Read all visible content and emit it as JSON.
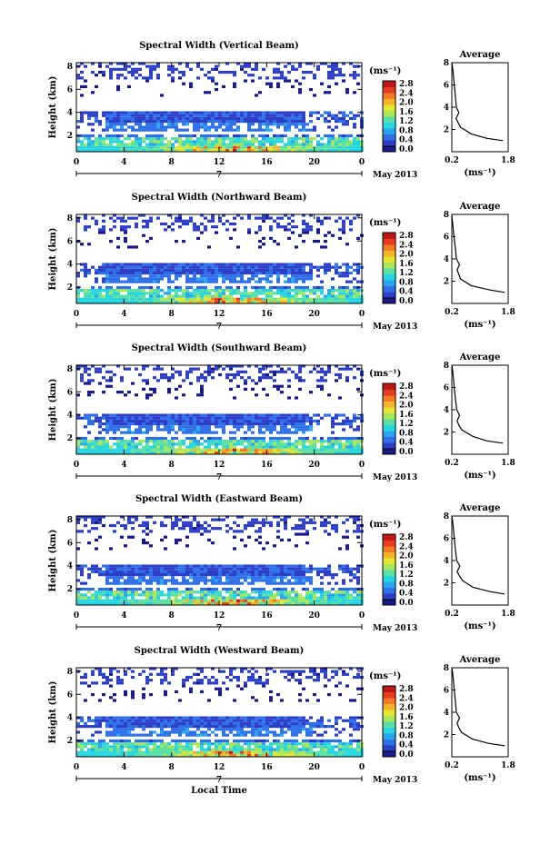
{
  "figure": {
    "xlabel": "Local Time",
    "date_label": "May 2013",
    "day_label": "7",
    "ylabel": "Height (km)",
    "colorbar_unit": "(ms⁻¹)",
    "avg_xlabel": "(ms⁻¹)",
    "colorscale": [
      "#1a1a8c",
      "#2d3fc9",
      "#2f6fe8",
      "#2aa6f0",
      "#25d6e0",
      "#5ae0a4",
      "#a8e65a",
      "#e6e632",
      "#f5b428",
      "#f57a23",
      "#e83c1e",
      "#c01818"
    ]
  },
  "chart_data": [
    {
      "type": "heatmap",
      "title": "Spectral Width (Vertical Beam)",
      "xlabel": "",
      "ylabel": "Height (km)",
      "xlim": [
        0,
        24
      ],
      "ylim": [
        0.6,
        8.3
      ],
      "xticks": [
        "0",
        "4",
        "8",
        "12",
        "16",
        "20",
        "0"
      ],
      "yticks": [
        "2",
        "4",
        "6",
        "8"
      ],
      "colorbar": {
        "label": "(ms⁻¹)",
        "range": [
          0,
          2.8
        ],
        "ticks": [
          "2.8",
          "2.4",
          "2.0",
          "1.6",
          "1.2",
          "0.8",
          "0.4",
          "0.0"
        ]
      },
      "average": {
        "title": "Average",
        "xlim": [
          0.2,
          1.8
        ],
        "xticks": [
          "0.2",
          "1.8"
        ],
        "ylim": [
          0,
          8
        ],
        "yticks": [
          "2",
          "4",
          "6",
          "8"
        ],
        "x": [
          1.65,
          1.2,
          0.75,
          0.45,
          0.38,
          0.32,
          0.4,
          0.33,
          0.3,
          0.27,
          0.24,
          0.22,
          0.2
        ],
        "y": [
          1.0,
          1.2,
          1.6,
          2.2,
          2.6,
          3.0,
          3.5,
          4.0,
          5.0,
          6.0,
          7.0,
          7.6,
          8.0
        ]
      }
    },
    {
      "type": "heatmap",
      "title": "Spectral Width (Northward Beam)",
      "xlabel": "",
      "ylabel": "Height (km)",
      "xlim": [
        0,
        24
      ],
      "ylim": [
        0.6,
        8.3
      ],
      "xticks": [
        "0",
        "4",
        "8",
        "12",
        "16",
        "20",
        "0"
      ],
      "yticks": [
        "2",
        "4",
        "6",
        "8"
      ],
      "colorbar": {
        "label": "(ms⁻¹)",
        "range": [
          0,
          2.8
        ],
        "ticks": [
          "2.8",
          "2.4",
          "2.0",
          "1.6",
          "1.2",
          "0.8",
          "0.4",
          "0.0"
        ]
      },
      "average": {
        "title": "Average",
        "xlim": [
          0.2,
          1.8
        ],
        "xticks": [
          "0.2",
          "1.8"
        ],
        "ylim": [
          0,
          8
        ],
        "yticks": [
          "2",
          "4",
          "6",
          "8"
        ],
        "x": [
          1.7,
          1.3,
          0.75,
          0.45,
          0.4,
          0.35,
          0.42,
          0.33,
          0.3,
          0.26,
          0.23,
          0.21,
          0.2
        ],
        "y": [
          1.0,
          1.2,
          1.6,
          2.2,
          2.6,
          3.0,
          3.5,
          4.0,
          5.0,
          6.0,
          7.0,
          7.6,
          8.0
        ]
      }
    },
    {
      "type": "heatmap",
      "title": "Spectral Width (Southward Beam)",
      "xlabel": "",
      "ylabel": "Height (km)",
      "xlim": [
        0,
        24
      ],
      "ylim": [
        0.6,
        8.3
      ],
      "xticks": [
        "0",
        "4",
        "8",
        "12",
        "16",
        "20",
        "0"
      ],
      "yticks": [
        "2",
        "4",
        "6",
        "8"
      ],
      "colorbar": {
        "label": "(ms⁻¹)",
        "range": [
          0,
          2.8
        ],
        "ticks": [
          "2.8",
          "2.4",
          "2.0",
          "1.6",
          "1.2",
          "0.8",
          "0.4",
          "0.0"
        ]
      },
      "average": {
        "title": "Average",
        "xlim": [
          0.2,
          1.8
        ],
        "xticks": [
          "0.2",
          "1.8"
        ],
        "ylim": [
          0,
          8
        ],
        "yticks": [
          "2",
          "4",
          "6",
          "8"
        ],
        "x": [
          1.65,
          1.2,
          0.8,
          0.48,
          0.4,
          0.35,
          0.42,
          0.34,
          0.3,
          0.27,
          0.24,
          0.22,
          0.2
        ],
        "y": [
          1.0,
          1.2,
          1.6,
          2.2,
          2.6,
          3.0,
          3.5,
          4.0,
          5.0,
          6.0,
          7.0,
          7.6,
          8.0
        ]
      }
    },
    {
      "type": "heatmap",
      "title": "Spectral Width (Eastward Beam)",
      "xlabel": "",
      "ylabel": "Height (km)",
      "xlim": [
        0,
        24
      ],
      "ylim": [
        0.6,
        8.3
      ],
      "xticks": [
        "0",
        "4",
        "8",
        "12",
        "16",
        "20",
        "0"
      ],
      "yticks": [
        "2",
        "4",
        "6",
        "8"
      ],
      "colorbar": {
        "label": "(ms⁻¹)",
        "range": [
          0,
          2.8
        ],
        "ticks": [
          "2.8",
          "2.4",
          "2.0",
          "1.6",
          "1.2",
          "0.8",
          "0.4",
          "0.0"
        ]
      },
      "average": {
        "title": "Average",
        "xlim": [
          0.2,
          1.8
        ],
        "xticks": [
          "0.2",
          "1.8"
        ],
        "ylim": [
          0,
          8
        ],
        "yticks": [
          "2",
          "4",
          "6",
          "8"
        ],
        "x": [
          1.7,
          1.3,
          0.8,
          0.5,
          0.42,
          0.35,
          0.43,
          0.34,
          0.3,
          0.27,
          0.24,
          0.22,
          0.2
        ],
        "y": [
          1.0,
          1.2,
          1.6,
          2.2,
          2.6,
          3.0,
          3.5,
          4.0,
          5.0,
          6.0,
          7.0,
          7.6,
          8.0
        ]
      }
    },
    {
      "type": "heatmap",
      "title": "Spectral Width (Westward Beam)",
      "xlabel": "Local Time",
      "ylabel": "Height (km)",
      "xlim": [
        0,
        24
      ],
      "ylim": [
        0.6,
        8.3
      ],
      "xticks": [
        "0",
        "4",
        "8",
        "12",
        "16",
        "20",
        "0"
      ],
      "yticks": [
        "2",
        "4",
        "6",
        "8"
      ],
      "colorbar": {
        "label": "(ms⁻¹)",
        "range": [
          0,
          2.8
        ],
        "ticks": [
          "2.8",
          "2.4",
          "2.0",
          "1.6",
          "1.2",
          "0.8",
          "0.4",
          "0.0"
        ]
      },
      "average": {
        "title": "Average",
        "xlim": [
          0.2,
          1.8
        ],
        "xticks": [
          "0.2",
          "1.8"
        ],
        "ylim": [
          0,
          8
        ],
        "yticks": [
          "2",
          "4",
          "6",
          "8"
        ],
        "x": [
          1.7,
          1.25,
          0.78,
          0.47,
          0.4,
          0.35,
          0.42,
          0.33,
          0.3,
          0.27,
          0.24,
          0.22,
          0.2
        ],
        "y": [
          1.0,
          1.2,
          1.6,
          2.2,
          2.6,
          3.0,
          3.5,
          4.0,
          5.0,
          6.0,
          7.0,
          7.6,
          8.0
        ]
      }
    }
  ]
}
